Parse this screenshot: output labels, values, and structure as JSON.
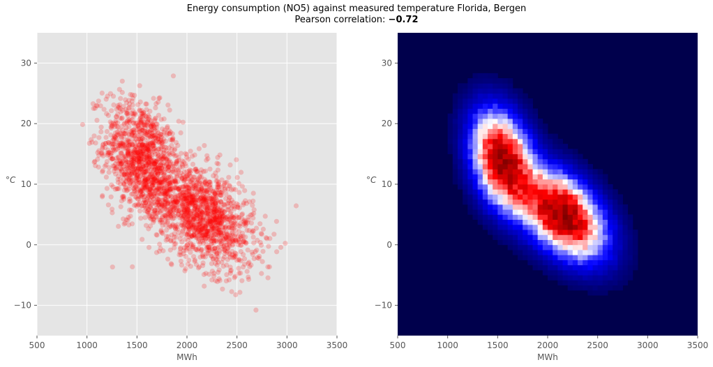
{
  "figure": {
    "title": "Energy consumption (NO5) against measured temperature Florida, Bergen",
    "subtitle_prefix": "Pearson correlation: ",
    "subtitle_value": "−0.72"
  },
  "chart_data": [
    {
      "type": "scatter",
      "title": "",
      "xlabel": "MWh",
      "ylabel": "°C",
      "xlim": [
        500,
        3500
      ],
      "ylim": [
        -15,
        35
      ],
      "xticks": [
        "500",
        "1000",
        "1500",
        "2000",
        "2500",
        "3000",
        "3500"
      ],
      "yticks": [
        "−10",
        "0",
        "10",
        "20",
        "30"
      ],
      "grid": true,
      "marker_color": "#ff0000",
      "marker_alpha": 0.2,
      "background": "#e5e5e5",
      "distribution": {
        "clusters": [
          {
            "x_mean": 1550,
            "y_mean": 14,
            "x_sd": 190,
            "y_sd": 5,
            "corr": -0.3,
            "weight": 0.45
          },
          {
            "x_mean": 2150,
            "y_mean": 5,
            "x_sd": 260,
            "y_sd": 4.5,
            "corr": -0.45,
            "weight": 0.55
          }
        ],
        "x_range": [
          830,
          3330
        ],
        "y_range": [
          -11,
          32
        ]
      }
    },
    {
      "type": "heatmap",
      "title": "",
      "xlabel": "MWh",
      "ylabel": "°C",
      "xlim": [
        500,
        3500
      ],
      "ylim": [
        -15,
        35
      ],
      "xticks": [
        "500",
        "1000",
        "1500",
        "2000",
        "2500",
        "3000",
        "3500"
      ],
      "yticks": [
        "−10",
        "0",
        "10",
        "20",
        "30"
      ],
      "grid": false,
      "colormap": "seismic",
      "colormap_stops": [
        "#00004c",
        "#0000ff",
        "#ffffff",
        "#ff0000",
        "#800000"
      ],
      "bins": [
        60,
        60
      ],
      "density_peaks": [
        {
          "x": 1550,
          "y": 13.5
        },
        {
          "x": 2050,
          "y": 6
        }
      ]
    }
  ]
}
